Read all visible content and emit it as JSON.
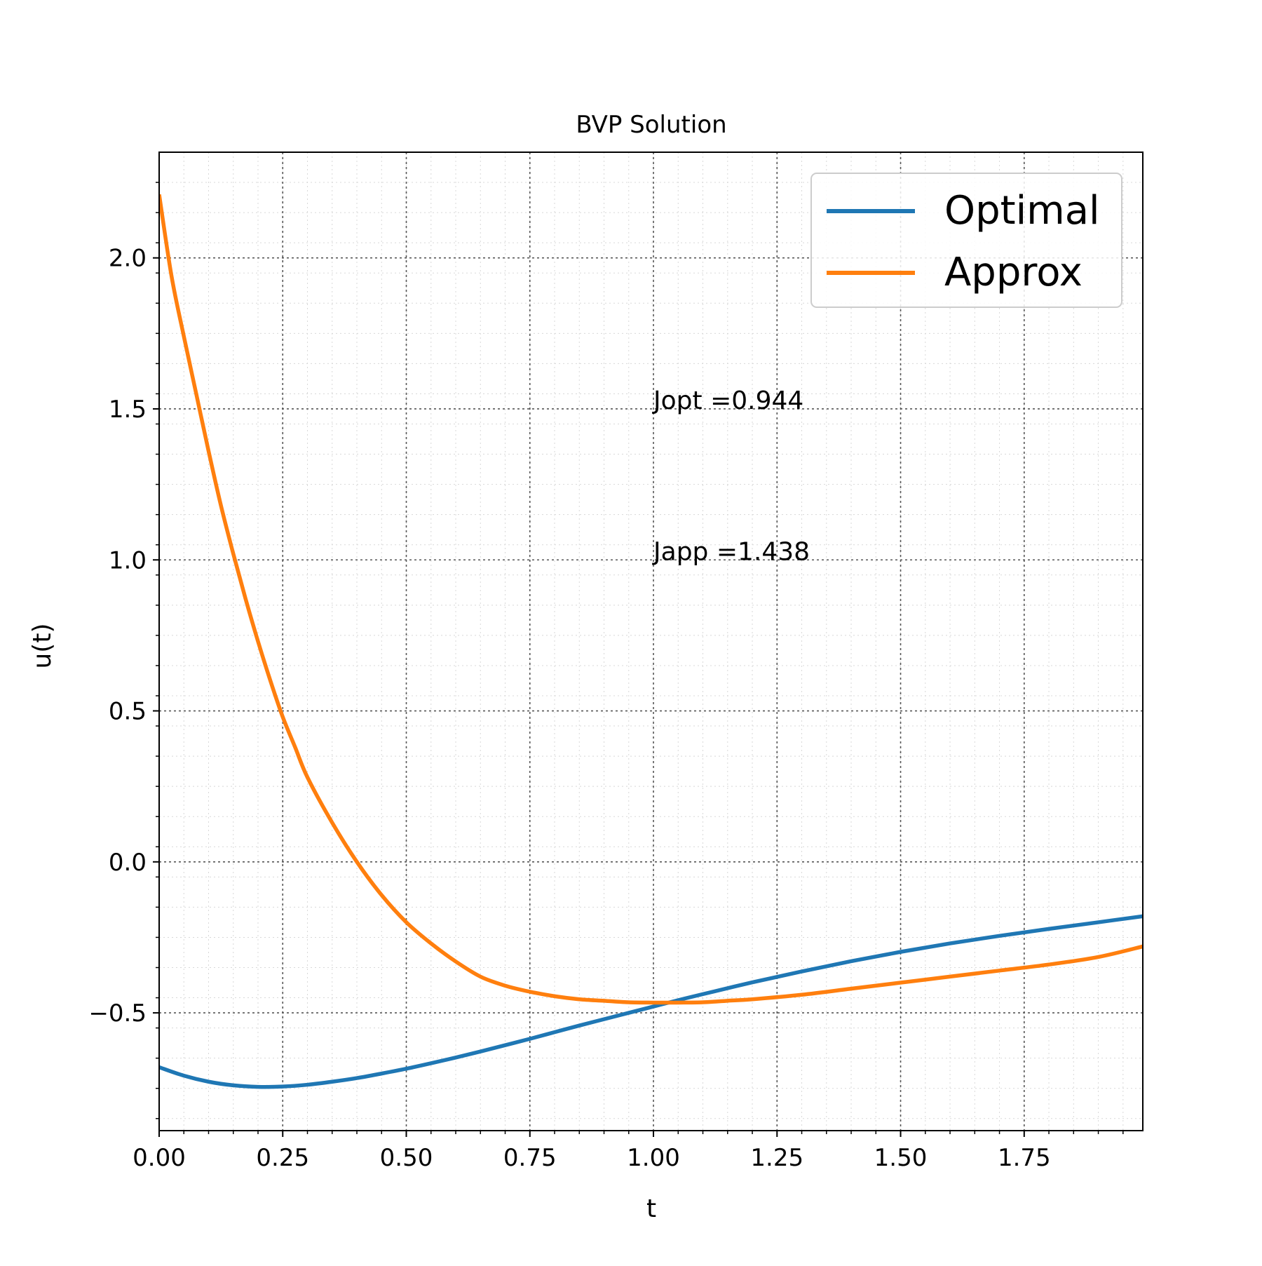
{
  "chart_data": {
    "type": "line",
    "title": "BVP Solution",
    "xlabel": "t",
    "ylabel": "u(t)",
    "xlim": [
      0.0,
      1.99
    ],
    "ylim": [
      -0.89,
      2.35
    ],
    "xticks": [
      {
        "value": 0.0,
        "label": "0.00"
      },
      {
        "value": 0.25,
        "label": "0.25"
      },
      {
        "value": 0.5,
        "label": "0.50"
      },
      {
        "value": 0.75,
        "label": "0.75"
      },
      {
        "value": 1.0,
        "label": "1.00"
      },
      {
        "value": 1.25,
        "label": "1.25"
      },
      {
        "value": 1.5,
        "label": "1.50"
      },
      {
        "value": 1.75,
        "label": "1.75"
      }
    ],
    "yticks": [
      {
        "value": -0.5,
        "label": "−0.5"
      },
      {
        "value": 0.0,
        "label": "0.0"
      },
      {
        "value": 0.5,
        "label": "0.5"
      },
      {
        "value": 1.0,
        "label": "1.0"
      },
      {
        "value": 1.5,
        "label": "1.5"
      },
      {
        "value": 2.0,
        "label": "2.0"
      }
    ],
    "grid": {
      "major": true,
      "minor": true,
      "style": "dotted"
    },
    "legend_position": "top-right",
    "series": [
      {
        "name": "Optimal",
        "color": "#1f77b4",
        "x": [
          0.0,
          0.05,
          0.1,
          0.15,
          0.2,
          0.25,
          0.3,
          0.35,
          0.4,
          0.45,
          0.5,
          0.55,
          0.6,
          0.65,
          0.7,
          0.75,
          0.8,
          0.85,
          0.9,
          0.95,
          1.0,
          1.05,
          1.1,
          1.2,
          1.3,
          1.4,
          1.5,
          1.6,
          1.7,
          1.8,
          1.9,
          1.99
        ],
        "y": [
          -0.68,
          -0.708,
          -0.728,
          -0.74,
          -0.745,
          -0.744,
          -0.738,
          -0.728,
          -0.716,
          -0.701,
          -0.685,
          -0.667,
          -0.648,
          -0.628,
          -0.607,
          -0.586,
          -0.564,
          -0.542,
          -0.521,
          -0.5,
          -0.479,
          -0.458,
          -0.438,
          -0.399,
          -0.363,
          -0.329,
          -0.298,
          -0.27,
          -0.245,
          -0.222,
          -0.2,
          -0.18
        ]
      },
      {
        "name": "Approx",
        "color": "#ff7f0e",
        "x": [
          0.0,
          0.025,
          0.05,
          0.075,
          0.1,
          0.125,
          0.15,
          0.175,
          0.2,
          0.225,
          0.25,
          0.275,
          0.3,
          0.35,
          0.4,
          0.45,
          0.5,
          0.55,
          0.6,
          0.65,
          0.7,
          0.75,
          0.8,
          0.85,
          0.9,
          0.95,
          1.0,
          1.05,
          1.1,
          1.15,
          1.2,
          1.3,
          1.4,
          1.5,
          1.6,
          1.7,
          1.8,
          1.9,
          1.99
        ],
        "y": [
          2.21,
          1.94,
          1.74,
          1.55,
          1.36,
          1.18,
          1.02,
          0.87,
          0.73,
          0.6,
          0.48,
          0.38,
          0.28,
          0.13,
          0.0,
          -0.11,
          -0.2,
          -0.27,
          -0.33,
          -0.38,
          -0.41,
          -0.43,
          -0.445,
          -0.455,
          -0.46,
          -0.465,
          -0.466,
          -0.466,
          -0.465,
          -0.46,
          -0.455,
          -0.44,
          -0.42,
          -0.4,
          -0.38,
          -0.36,
          -0.34,
          -0.315,
          -0.28
        ]
      }
    ],
    "annotations": [
      {
        "text": "Jopt =0.944",
        "x": 1.0,
        "y": 1.5
      },
      {
        "text": "Japp =1.438",
        "x": 1.0,
        "y": 1.0
      }
    ]
  }
}
